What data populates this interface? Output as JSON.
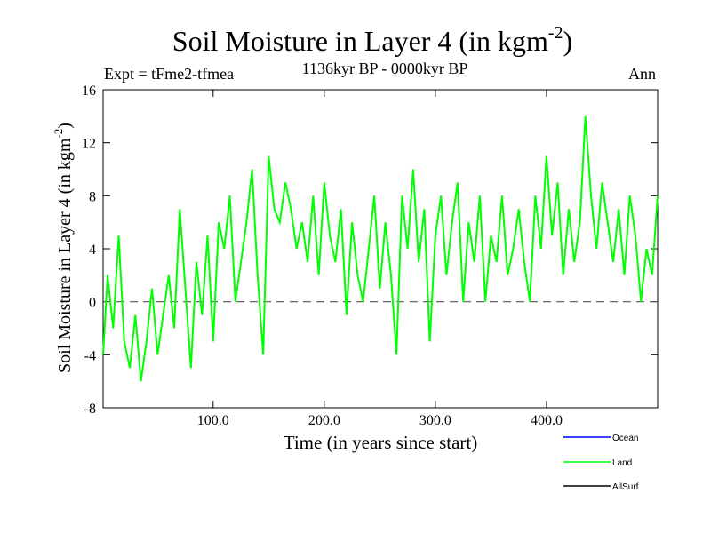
{
  "chart_data": {
    "type": "line",
    "title": "Soil Moisture in Layer 4 (in kgm",
    "title_superscript": "-2",
    "title_suffix": ")",
    "subtitle": "1136kyr BP - 0000kyr BP",
    "left_annotation": "Expt = tFme2-tfmea",
    "right_annotation": "Ann",
    "xlabel": "Time (in years since start)",
    "ylabel": "Soil Moisture in Layer 4 (in kgm",
    "ylabel_superscript": "-2",
    "ylabel_suffix": ")",
    "xlim": [
      1,
      500
    ],
    "ylim": [
      -8,
      16
    ],
    "x_ticks": [
      100,
      200,
      300,
      400
    ],
    "x_tick_labels": [
      "100.0",
      "200.0",
      "300.0",
      "400.0"
    ],
    "y_ticks": [
      -8,
      -4,
      0,
      4,
      8,
      12,
      16
    ],
    "y_tick_labels": [
      "-8",
      "-4",
      "0",
      "4",
      "8",
      "12",
      "16"
    ],
    "reference_line": {
      "y": 0,
      "style": "dashed",
      "color": "#555555"
    },
    "legend": [
      {
        "name": "Ocean",
        "color": "#0000ff"
      },
      {
        "name": "Land",
        "color": "#00ff00"
      },
      {
        "name": "AllSurf",
        "color": "#000000"
      }
    ],
    "series": [
      {
        "name": "Land",
        "color": "#00ff00",
        "x": [
          1,
          5,
          10,
          15,
          20,
          25,
          30,
          35,
          40,
          45,
          50,
          55,
          60,
          65,
          70,
          75,
          80,
          85,
          90,
          95,
          100,
          105,
          110,
          115,
          120,
          125,
          130,
          135,
          140,
          145,
          150,
          155,
          160,
          165,
          170,
          175,
          180,
          185,
          190,
          195,
          200,
          205,
          210,
          215,
          220,
          225,
          230,
          235,
          240,
          245,
          250,
          255,
          260,
          265,
          270,
          275,
          280,
          285,
          290,
          295,
          300,
          305,
          310,
          315,
          320,
          325,
          330,
          335,
          340,
          345,
          350,
          355,
          360,
          365,
          370,
          375,
          380,
          385,
          390,
          395,
          400,
          405,
          410,
          415,
          420,
          425,
          430,
          435,
          440,
          445,
          450,
          455,
          460,
          465,
          470,
          475,
          480,
          485,
          490,
          495,
          500
        ],
        "values": [
          -4,
          2,
          -2,
          5,
          -3,
          -5,
          -1,
          -6,
          -3,
          1,
          -4,
          -1,
          2,
          -2,
          7,
          1,
          -5,
          3,
          -1,
          5,
          -3,
          6,
          4,
          8,
          0,
          3,
          6,
          10,
          2,
          -4,
          11,
          7,
          6,
          9,
          7,
          4,
          6,
          3,
          8,
          2,
          9,
          5,
          3,
          7,
          -1,
          6,
          2,
          0,
          4,
          8,
          1,
          6,
          2,
          -4,
          8,
          4,
          10,
          3,
          7,
          -3,
          5,
          8,
          2,
          6,
          9,
          0,
          6,
          3,
          8,
          0,
          5,
          3,
          8,
          2,
          4,
          7,
          3,
          0,
          8,
          4,
          11,
          5,
          9,
          2,
          7,
          3,
          6,
          14,
          8,
          4,
          9,
          6,
          3,
          7,
          2,
          8,
          5,
          0,
          4,
          2,
          8
        ]
      }
    ]
  }
}
